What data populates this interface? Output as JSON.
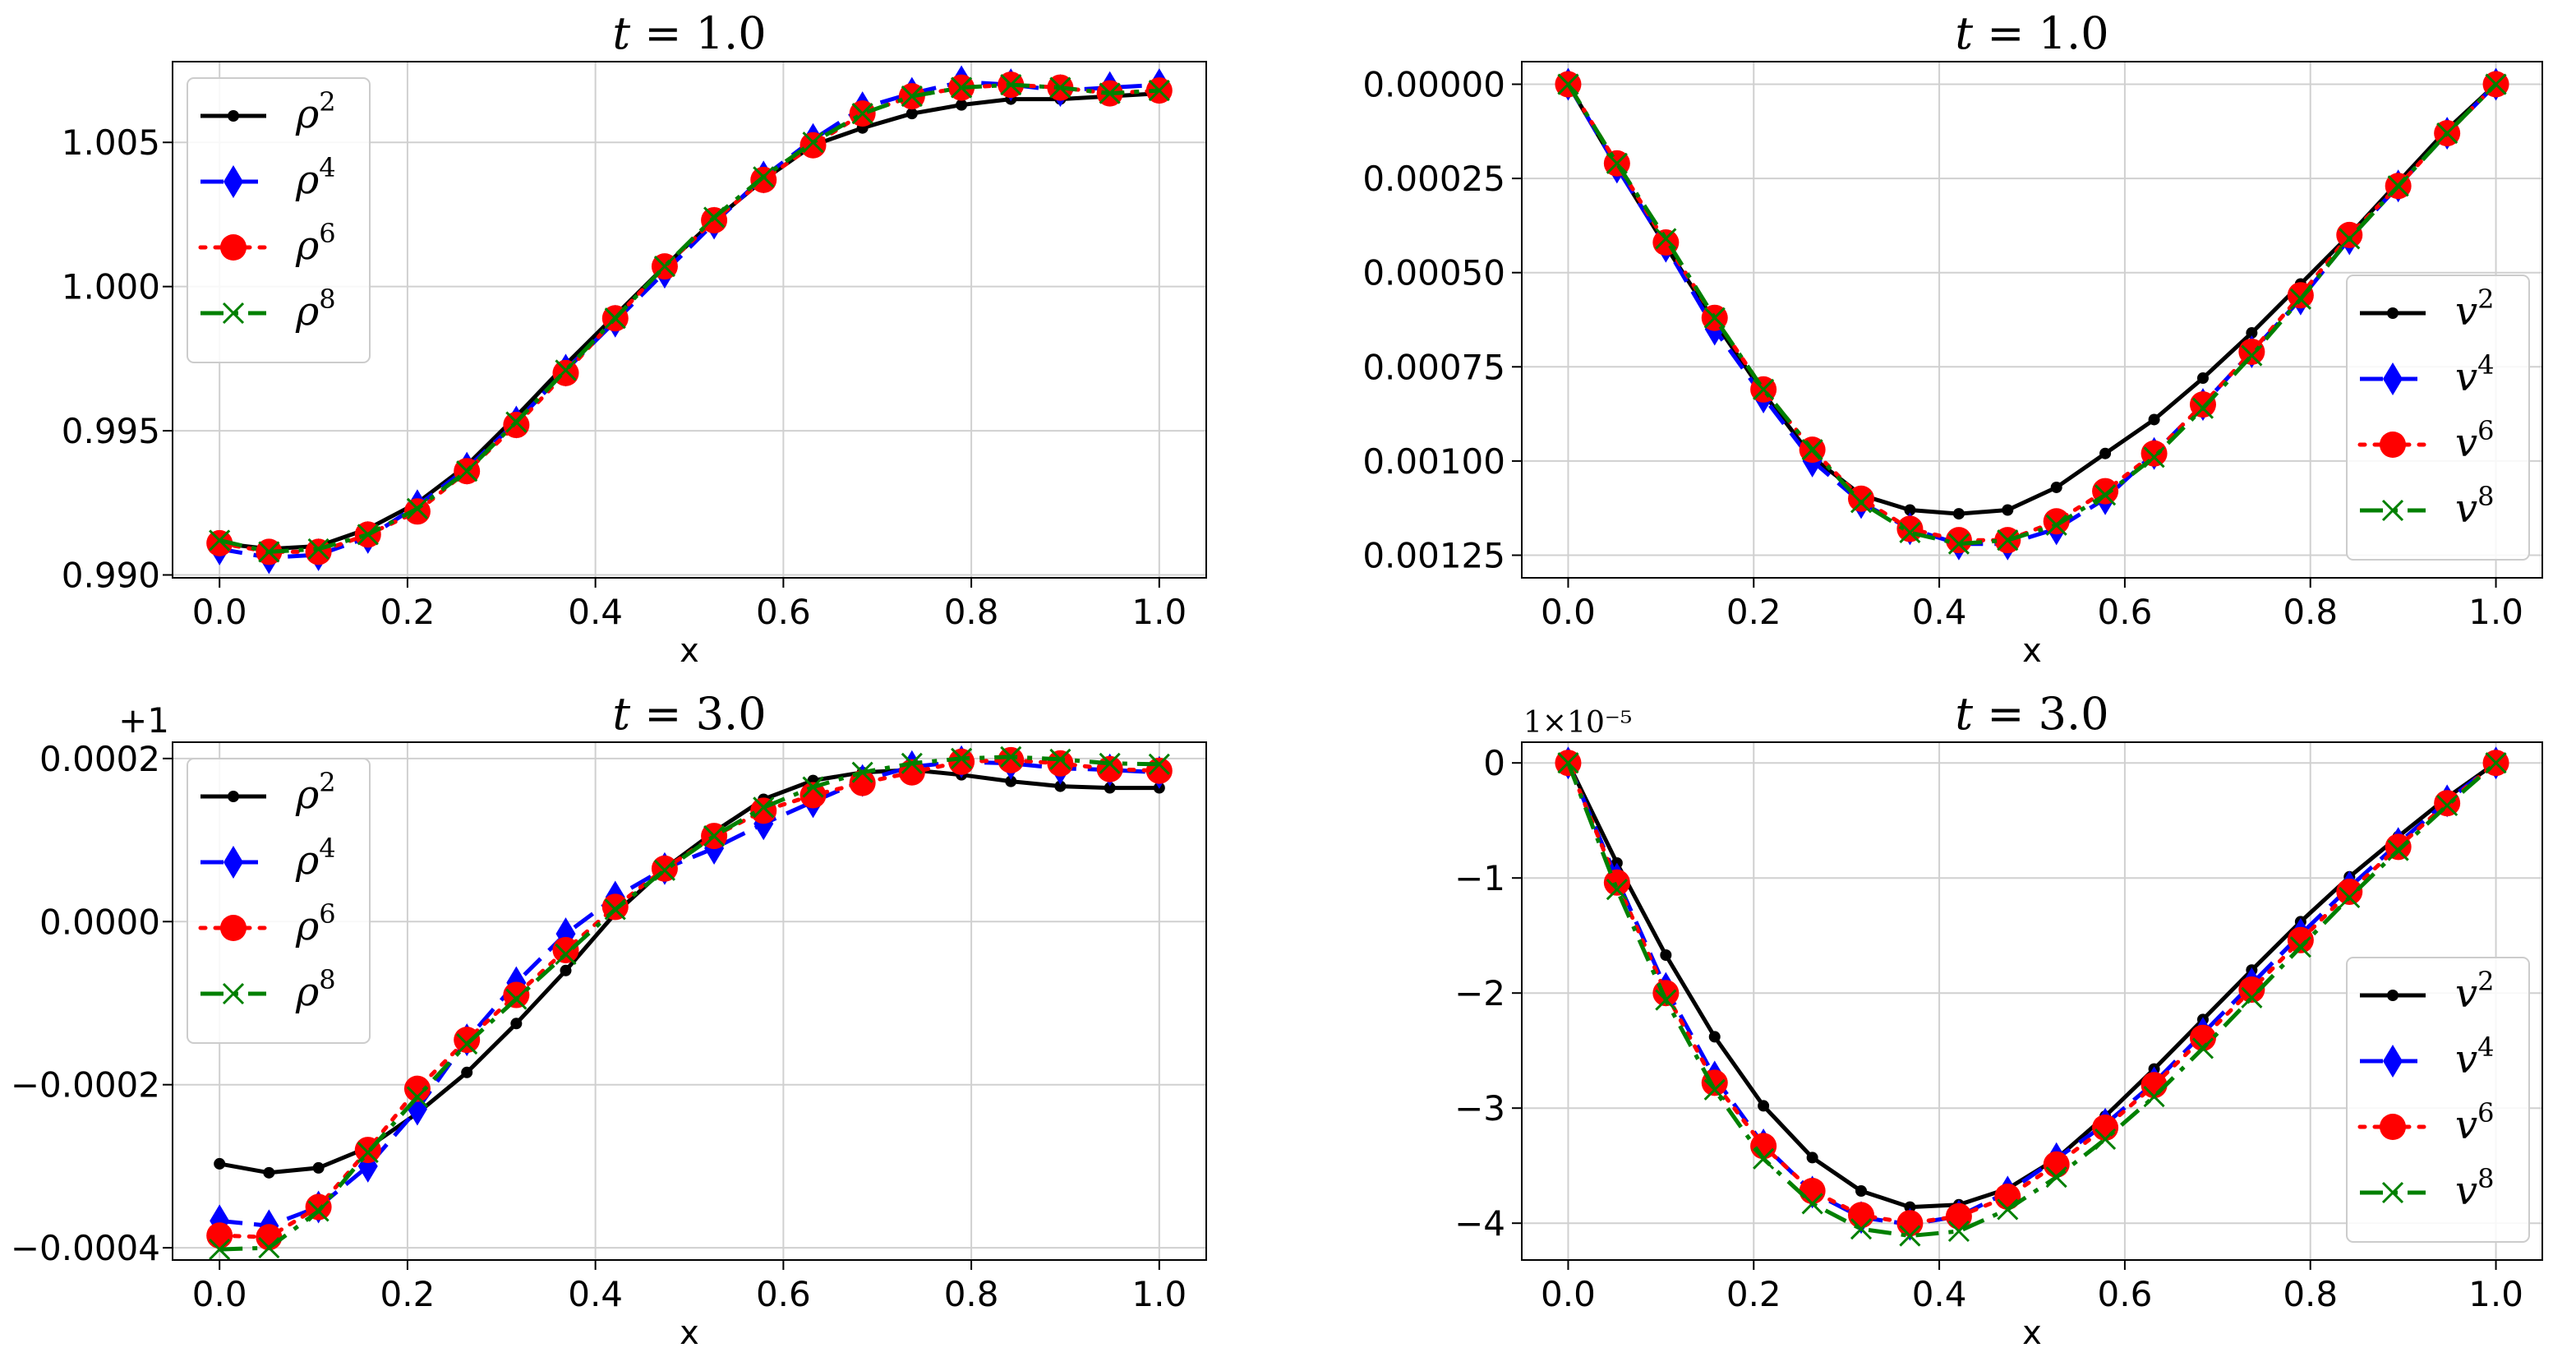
{
  "chart_data": [
    {
      "type": "line",
      "title": "t = 1.0",
      "title_var": "t",
      "title_rest": " = 1.0",
      "xlabel": "x",
      "ylabel": "",
      "xlim": [
        -0.05,
        1.05
      ],
      "ylim": [
        0.9899,
        1.0078
      ],
      "xticks": [
        0.0,
        0.2,
        0.4,
        0.6,
        0.8,
        1.0
      ],
      "xtick_labels": [
        "0.0",
        "0.2",
        "0.4",
        "0.6",
        "0.8",
        "1.0"
      ],
      "yticks": [
        0.99,
        0.995,
        1.0,
        1.005
      ],
      "ytick_labels": [
        "0.990",
        "0.995",
        "1.000",
        "1.005"
      ],
      "y_inverted": false,
      "offset_text": "",
      "legend_location": "upper-left",
      "x": [
        0.0,
        0.0526,
        0.1053,
        0.1579,
        0.2105,
        0.2632,
        0.3158,
        0.3684,
        0.4211,
        0.4737,
        0.5263,
        0.5789,
        0.6316,
        0.6842,
        0.7368,
        0.7895,
        0.8421,
        0.8947,
        0.9474,
        1.0
      ],
      "series": [
        {
          "name": "ρ2",
          "label_base": "ρ",
          "label_sup": "2",
          "color": "#000000",
          "dash": "none",
          "marker": "point",
          "values": [
            0.9911,
            0.9909,
            0.991,
            0.9916,
            0.9925,
            0.9938,
            0.9955,
            0.9973,
            0.999,
            1.0007,
            1.0023,
            1.0037,
            1.0049,
            1.0055,
            1.006,
            1.0063,
            1.0065,
            1.0065,
            1.0066,
            1.0067
          ]
        },
        {
          "name": "ρ4",
          "label_base": "ρ",
          "label_sup": "4",
          "color": "#0000ff",
          "dash": "dashed",
          "marker": "diamond",
          "values": [
            0.9909,
            0.9906,
            0.9907,
            0.9913,
            0.9924,
            0.9937,
            0.9953,
            0.9971,
            0.9988,
            1.0005,
            1.0022,
            1.0038,
            1.0051,
            1.0062,
            1.0067,
            1.0071,
            1.007,
            1.0068,
            1.0069,
            1.007
          ]
        },
        {
          "name": "ρ6",
          "label_base": "ρ",
          "label_sup": "6",
          "color": "#ff0000",
          "dash": "dotted",
          "marker": "circle",
          "values": [
            0.9911,
            0.9908,
            0.9908,
            0.9914,
            0.9922,
            0.9936,
            0.9952,
            0.997,
            0.9989,
            1.0007,
            1.0023,
            1.0037,
            1.0049,
            1.006,
            1.0066,
            1.0069,
            1.007,
            1.0069,
            1.0067,
            1.0068
          ]
        },
        {
          "name": "ρ8",
          "label_base": "ρ",
          "label_sup": "8",
          "color": "#008000",
          "dash": "dashdot",
          "marker": "x",
          "values": [
            0.9912,
            0.9908,
            0.9909,
            0.9914,
            0.9923,
            0.9936,
            0.9953,
            0.9971,
            0.9989,
            1.0007,
            1.0024,
            1.0038,
            1.005,
            1.006,
            1.0066,
            1.0069,
            1.007,
            1.0069,
            1.0067,
            1.0068
          ]
        }
      ]
    },
    {
      "type": "line",
      "title": "t = 1.0",
      "title_var": "t",
      "title_rest": " = 1.0",
      "xlabel": "x",
      "ylabel": "",
      "xlim": [
        -0.05,
        1.05
      ],
      "ylim": [
        0.00131,
        -6e-05
      ],
      "xticks": [
        0.0,
        0.2,
        0.4,
        0.6,
        0.8,
        1.0
      ],
      "xtick_labels": [
        "0.0",
        "0.2",
        "0.4",
        "0.6",
        "0.8",
        "1.0"
      ],
      "yticks": [
        0.0,
        0.00025,
        0.0005,
        0.00075,
        0.001,
        0.00125
      ],
      "ytick_labels": [
        "0.00000",
        "0.00025",
        "0.00050",
        "0.00075",
        "0.00100",
        "0.00125"
      ],
      "y_inverted": true,
      "offset_text": "",
      "legend_location": "lower-right",
      "x": [
        0.0,
        0.0526,
        0.1053,
        0.1579,
        0.2105,
        0.2632,
        0.3158,
        0.3684,
        0.4211,
        0.4737,
        0.5263,
        0.5789,
        0.6316,
        0.6842,
        0.7368,
        0.7895,
        0.8421,
        0.8947,
        0.9474,
        1.0
      ],
      "series": [
        {
          "name": "v2",
          "label_base": "v",
          "label_sup": "2",
          "color": "#000000",
          "dash": "none",
          "marker": "point",
          "values": [
            0.0,
            0.00022,
            0.00043,
            0.00063,
            0.00082,
            0.00099,
            0.00109,
            0.00113,
            0.00114,
            0.00113,
            0.00107,
            0.00098,
            0.00089,
            0.00078,
            0.00066,
            0.00053,
            0.0004,
            0.00026,
            0.00012,
            0.0
          ]
        },
        {
          "name": "v4",
          "label_base": "v",
          "label_sup": "4",
          "color": "#0000ff",
          "dash": "dashed",
          "marker": "diamond",
          "values": [
            0.0,
            0.00022,
            0.00043,
            0.00065,
            0.00083,
            0.001,
            0.00111,
            0.00118,
            0.00122,
            0.00122,
            0.00118,
            0.0011,
            0.00098,
            0.00085,
            0.00071,
            0.00057,
            0.00041,
            0.00027,
            0.00013,
            0.0
          ]
        },
        {
          "name": "v6",
          "label_base": "v",
          "label_sup": "6",
          "color": "#ff0000",
          "dash": "dotted",
          "marker": "circle",
          "values": [
            0.0,
            0.00021,
            0.00042,
            0.00062,
            0.00081,
            0.00097,
            0.0011,
            0.00118,
            0.00121,
            0.00121,
            0.00116,
            0.00108,
            0.00098,
            0.00085,
            0.00071,
            0.00056,
            0.0004,
            0.00027,
            0.00013,
            0.0
          ]
        },
        {
          "name": "v8",
          "label_base": "v",
          "label_sup": "8",
          "color": "#008000",
          "dash": "dashdot",
          "marker": "x",
          "values": [
            0.0,
            0.00021,
            0.00041,
            0.00062,
            0.00081,
            0.00097,
            0.00111,
            0.00119,
            0.00122,
            0.00121,
            0.00117,
            0.00109,
            0.00099,
            0.00086,
            0.00072,
            0.00057,
            0.00041,
            0.00027,
            0.00013,
            0.0
          ]
        }
      ]
    },
    {
      "type": "line",
      "title": "t = 3.0",
      "title_var": "t",
      "title_rest": " = 3.0",
      "xlabel": "x",
      "ylabel": "",
      "xlim": [
        -0.05,
        1.05
      ],
      "ylim": [
        -0.000415,
        0.00022
      ],
      "xticks": [
        0.0,
        0.2,
        0.4,
        0.6,
        0.8,
        1.0
      ],
      "xtick_labels": [
        "0.0",
        "0.2",
        "0.4",
        "0.6",
        "0.8",
        "1.0"
      ],
      "yticks": [
        -0.0004,
        -0.0002,
        0.0,
        0.0002
      ],
      "ytick_labels": [
        "−0.0004",
        "−0.0002",
        "0.0000",
        "0.0002"
      ],
      "y_inverted": false,
      "offset_text": "+1",
      "legend_location": "upper-left",
      "x": [
        0.0,
        0.0526,
        0.1053,
        0.1579,
        0.2105,
        0.2632,
        0.3158,
        0.3684,
        0.4211,
        0.4737,
        0.5263,
        0.5789,
        0.6316,
        0.6842,
        0.7368,
        0.7895,
        0.8421,
        0.8947,
        0.9474,
        1.0
      ],
      "series": [
        {
          "name": "ρ2",
          "label_base": "ρ",
          "label_sup": "2",
          "color": "#000000",
          "dash": "none",
          "marker": "point",
          "values": [
            -0.000297,
            -0.000308,
            -0.000302,
            -0.000277,
            -0.000235,
            -0.000185,
            -0.000125,
            -6e-05,
            1e-05,
            6.5e-05,
            0.00011,
            0.00015,
            0.000173,
            0.000183,
            0.000186,
            0.00018,
            0.000172,
            0.000166,
            0.000164,
            0.000164
          ]
        },
        {
          "name": "ρ4",
          "label_base": "ρ",
          "label_sup": "4",
          "color": "#0000ff",
          "dash": "dashed",
          "marker": "diamond",
          "values": [
            -0.000367,
            -0.000373,
            -0.00035,
            -0.0003,
            -0.00023,
            -0.000145,
            -7.5e-05,
            -1.5e-05,
            3e-05,
            6.5e-05,
            9e-05,
            0.00012,
            0.000147,
            0.000173,
            0.00019,
            0.000196,
            0.000194,
            0.000188,
            0.000186,
            0.000183
          ]
        },
        {
          "name": "ρ6",
          "label_base": "ρ",
          "label_sup": "6",
          "color": "#ff0000",
          "dash": "dotted",
          "marker": "circle",
          "values": [
            -0.000385,
            -0.000387,
            -0.00035,
            -0.00028,
            -0.000205,
            -0.000145,
            -9e-05,
            -3.5e-05,
            1.8e-05,
            6.5e-05,
            0.000105,
            0.000136,
            0.000155,
            0.00017,
            0.000183,
            0.000196,
            0.000198,
            0.000194,
            0.000187,
            0.000185
          ]
        },
        {
          "name": "ρ8",
          "label_base": "ρ",
          "label_sup": "8",
          "color": "#008000",
          "dash": "dashdot",
          "marker": "x",
          "values": [
            -0.000402,
            -0.0004,
            -0.000355,
            -0.000283,
            -0.000215,
            -0.00015,
            -9.5e-05,
            -4e-05,
            1.5e-05,
            6.3e-05,
            0.000105,
            0.00014,
            0.000165,
            0.000183,
            0.000194,
            0.0002,
            0.000202,
            0.000199,
            0.000194,
            0.000193
          ]
        }
      ]
    },
    {
      "type": "line",
      "title": "t = 3.0",
      "title_var": "t",
      "title_rest": " = 3.0",
      "xlabel": "x",
      "ylabel": "",
      "xlim": [
        -0.05,
        1.05
      ],
      "ylim": [
        -4.32,
        0.18
      ],
      "xticks": [
        0.0,
        0.2,
        0.4,
        0.6,
        0.8,
        1.0
      ],
      "xtick_labels": [
        "0.0",
        "0.2",
        "0.4",
        "0.6",
        "0.8",
        "1.0"
      ],
      "yticks": [
        0,
        -1,
        -2,
        -3,
        -4
      ],
      "ytick_labels": [
        "0",
        "−1",
        "−2",
        "−3",
        "−4"
      ],
      "y_inverted": false,
      "offset_text": "1×10⁻⁵",
      "legend_location": "lower-right",
      "x": [
        0.0,
        0.0526,
        0.1053,
        0.1579,
        0.2105,
        0.2632,
        0.3158,
        0.3684,
        0.4211,
        0.4737,
        0.5263,
        0.5789,
        0.6316,
        0.6842,
        0.7368,
        0.7895,
        0.8421,
        0.8947,
        0.9474,
        1.0
      ],
      "series": [
        {
          "name": "v2",
          "label_base": "v",
          "label_sup": "2",
          "color": "#000000",
          "dash": "none",
          "marker": "point",
          "values": [
            0.0,
            -0.87,
            -1.67,
            -2.38,
            -2.98,
            -3.43,
            -3.72,
            -3.86,
            -3.84,
            -3.7,
            -3.44,
            -3.07,
            -2.66,
            -2.23,
            -1.8,
            -1.38,
            -0.99,
            -0.64,
            -0.3,
            0.0
          ]
        },
        {
          "name": "v4",
          "label_base": "v",
          "label_sup": "4",
          "color": "#0000ff",
          "dash": "dashed",
          "marker": "diamond",
          "values": [
            0.0,
            -1.01,
            -1.96,
            -2.73,
            -3.32,
            -3.73,
            -3.95,
            -4.01,
            -3.94,
            -3.73,
            -3.44,
            -3.14,
            -2.78,
            -2.35,
            -1.92,
            -1.49,
            -1.08,
            -0.7,
            -0.33,
            0.0
          ]
        },
        {
          "name": "v6",
          "label_base": "v",
          "label_sup": "6",
          "color": "#ff0000",
          "dash": "dotted",
          "marker": "circle",
          "values": [
            0.0,
            -1.04,
            -2.0,
            -2.78,
            -3.33,
            -3.72,
            -3.93,
            -4.0,
            -3.94,
            -3.77,
            -3.49,
            -3.17,
            -2.8,
            -2.39,
            -1.97,
            -1.54,
            -1.12,
            -0.73,
            -0.35,
            0.0
          ]
        },
        {
          "name": "v8",
          "label_base": "v",
          "label_sup": "8",
          "color": "#008000",
          "dash": "dashdot",
          "marker": "x",
          "values": [
            0.0,
            -1.1,
            -2.06,
            -2.84,
            -3.44,
            -3.83,
            -4.05,
            -4.11,
            -4.07,
            -3.88,
            -3.6,
            -3.27,
            -2.9,
            -2.48,
            -2.04,
            -1.6,
            -1.17,
            -0.76,
            -0.37,
            0.0
          ]
        }
      ]
    }
  ]
}
